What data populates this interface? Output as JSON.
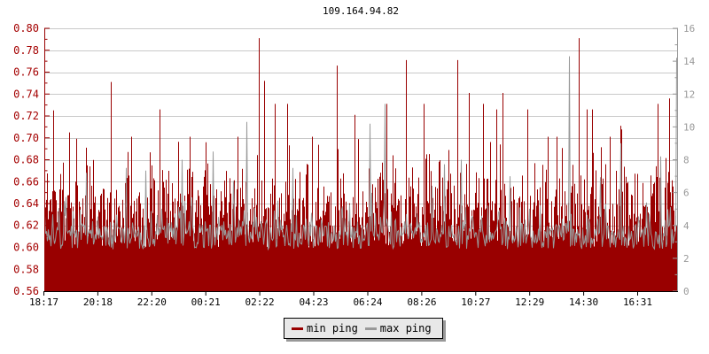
{
  "title": "109.164.94.82",
  "legend": {
    "items": [
      {
        "label": "min ping",
        "color": "#990000"
      },
      {
        "label": "max ping",
        "color": "#999999"
      }
    ]
  },
  "colors": {
    "min_ping": "#990000",
    "max_ping": "#999999",
    "grid": "#c9c9c9",
    "left_axis": "#990000",
    "left_labels": "#a40000",
    "right_axis": "#999999",
    "right_labels": "#999999",
    "bottom_axis": "#000000",
    "bottom_labels": "#000000",
    "background": "#ffffff",
    "legend_bg": "#e8e8e8",
    "legend_border": "#000000",
    "legend_shadow": "#999999"
  },
  "chart_data": {
    "type": "bar",
    "title": "109.164.94.82",
    "grid": "horizontal-only",
    "legend_position": "bottom-center",
    "left_axis": {
      "min": 0.56,
      "max": 0.8,
      "major_step": 0.02,
      "minor_step": 0.01,
      "tick_labels": [
        "0.80",
        "0.78",
        "0.76",
        "0.74",
        "0.72",
        "0.70",
        "0.68",
        "0.66",
        "0.64",
        "0.62",
        "0.60",
        "0.58",
        "0.56"
      ]
    },
    "right_axis": {
      "min": 0,
      "max": 16,
      "major_step": 2,
      "minor_step": 1,
      "tick_labels": [
        "16",
        "14",
        "12",
        "10",
        "8",
        "6",
        "4",
        "2",
        "0"
      ]
    },
    "x_axis": {
      "tick_labels": [
        "18:17",
        "20:18",
        "22:20",
        "00:21",
        "02:22",
        "04:23",
        "06:24",
        "08:26",
        "10:27",
        "12:29",
        "14:30",
        "16:31"
      ]
    },
    "series": [
      {
        "name": "min ping",
        "axis": "left",
        "style": "bars",
        "color": "#990000",
        "typical_range": [
          0.6,
          0.68
        ],
        "synth": {
          "seed": 1337,
          "base": 0.6,
          "b1": 0.038,
          "p2": 0.62,
          "a2": 0.04,
          "p3": 0.22,
          "a3": 0.045,
          "p4": 0.025,
          "a4": 0.05,
          "max": 0.77
        },
        "spikes": [
          [
            10,
            0.725
          ],
          [
            28,
            0.705
          ],
          [
            47,
            0.691
          ],
          [
            75,
            0.751
          ],
          [
            98,
            0.701
          ],
          [
            130,
            0.726
          ],
          [
            164,
            0.701
          ],
          [
            182,
            0.696
          ],
          [
            218,
            0.701
          ],
          [
            242,
            0.791
          ],
          [
            248,
            0.752
          ],
          [
            260,
            0.731
          ],
          [
            274,
            0.731
          ],
          [
            302,
            0.701
          ],
          [
            330,
            0.766
          ],
          [
            350,
            0.721
          ],
          [
            386,
            0.731
          ],
          [
            408,
            0.771
          ],
          [
            428,
            0.731
          ],
          [
            466,
            0.771
          ],
          [
            479,
            0.741
          ],
          [
            495,
            0.731
          ],
          [
            510,
            0.726
          ],
          [
            517,
            0.741
          ],
          [
            545,
            0.726
          ],
          [
            568,
            0.701
          ],
          [
            578,
            0.701
          ],
          [
            603,
            0.791
          ],
          [
            612,
            0.726
          ],
          [
            618,
            0.726
          ],
          [
            638,
            0.701
          ],
          [
            650,
            0.711
          ],
          [
            692,
            0.731
          ],
          [
            705,
            0.736
          ]
        ]
      },
      {
        "name": "max ping",
        "axis": "right",
        "style": "line",
        "color": "#999999",
        "typical_range": [
          2.5,
          4.5
        ],
        "synth": {
          "seed": 4242,
          "base": 2.55,
          "b1": 1.5,
          "p2": 0.3,
          "a2": 1.3,
          "p3": 0.05,
          "a3": 2.5,
          "p4": 0.01,
          "a4": 4.0,
          "max": 12
        },
        "spikes": [
          [
            47,
            7.2
          ],
          [
            155,
            8.0
          ],
          [
            190,
            8.5
          ],
          [
            228,
            10.3
          ],
          [
            280,
            7.5
          ],
          [
            367,
            10.2
          ],
          [
            384,
            11.4
          ],
          [
            470,
            8.0
          ],
          [
            525,
            7.0
          ],
          [
            592,
            14.3
          ],
          [
            650,
            9.0
          ],
          [
            695,
            8.2
          ],
          [
            713,
            14.2
          ]
        ]
      }
    ]
  }
}
